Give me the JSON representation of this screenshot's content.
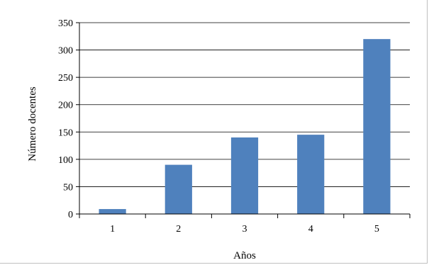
{
  "chart_data": {
    "type": "bar",
    "categories": [
      "1",
      "2",
      "3",
      "4",
      "5"
    ],
    "series": [
      {
        "values": [
          9,
          90,
          140,
          145,
          320
        ]
      }
    ],
    "title": "",
    "xlabel": "Años",
    "ylabel": "Número docentes",
    "ylim": [
      0,
      350
    ],
    "yticks": [
      0,
      50,
      100,
      150,
      200,
      250,
      300,
      350
    ],
    "grid": true,
    "legend": "none",
    "bar_color": "#4f81bd",
    "grid_color": "#000000"
  }
}
